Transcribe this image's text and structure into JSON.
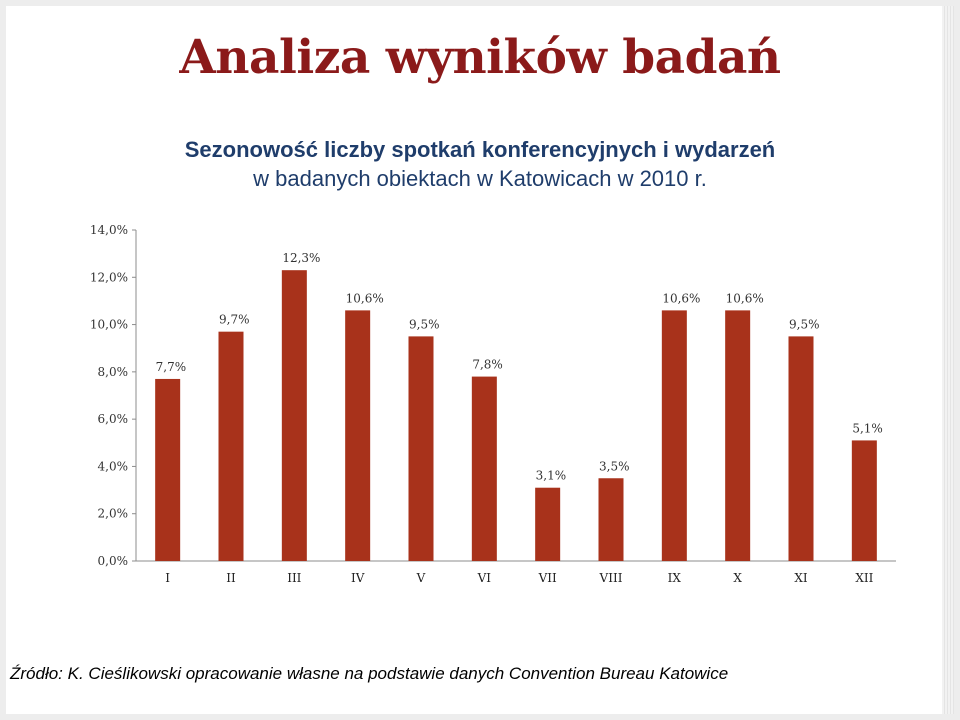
{
  "page": {
    "title": "Analiza wyników badań",
    "subtitle_line1": "Sezonowość liczby spotkań konferencyjnych i wydarzeń",
    "subtitle_line2": "w badanych obiektach w Katowicach w 2010 r.",
    "source": "Źródło: K. Cieślikowski opracowanie własne na podstawie danych Convention Bureau Katowice"
  },
  "colors": {
    "bar": "#a8321b",
    "title": "#8b1a1a",
    "subtitle": "#1f3d6b"
  },
  "chart_data": {
    "type": "bar",
    "categories": [
      "I",
      "II",
      "III",
      "IV",
      "V",
      "VI",
      "VII",
      "VIII",
      "IX",
      "X",
      "XI",
      "XII"
    ],
    "values": [
      7.7,
      9.7,
      12.3,
      10.6,
      9.5,
      7.8,
      3.1,
      3.5,
      10.6,
      10.6,
      9.5,
      5.1
    ],
    "value_labels": [
      "7,7%",
      "9,7%",
      "12,3%",
      "10,6%",
      "9,5%",
      "7,8%",
      "3,1%",
      "3,5%",
      "10,6%",
      "10,6%",
      "9,5%",
      "5,1%"
    ],
    "yticks": [
      0,
      2,
      4,
      6,
      8,
      10,
      12,
      14
    ],
    "ytick_labels": [
      "0,0%",
      "2,0%",
      "4,0%",
      "6,0%",
      "8,0%",
      "10,0%",
      "12,0%",
      "14,0%"
    ],
    "ylim": [
      0,
      14
    ],
    "grid": false,
    "legend": "none"
  }
}
